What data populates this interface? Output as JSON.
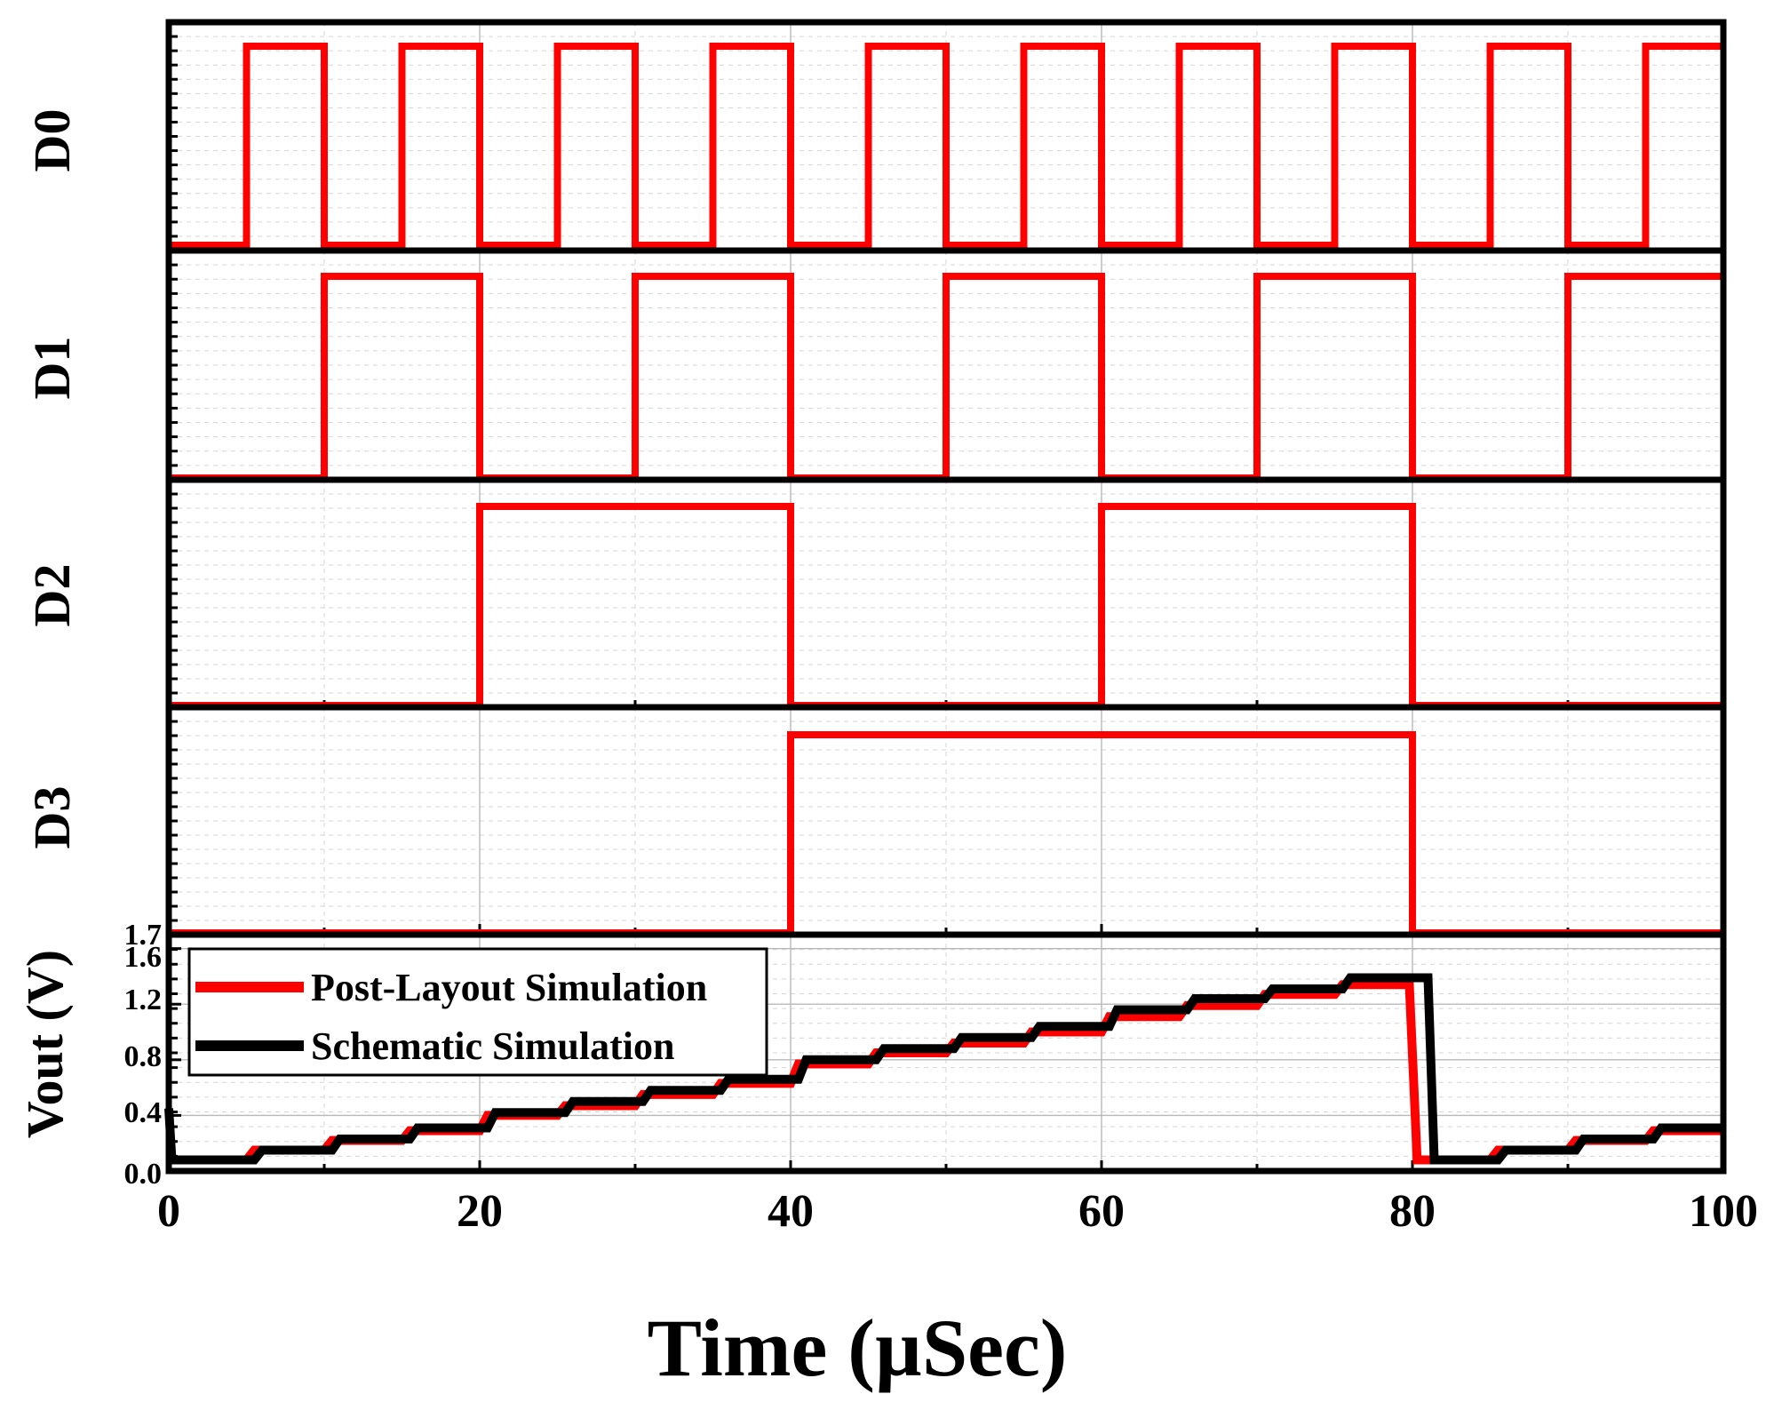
{
  "chart_data": {
    "type": "line",
    "xlabel": "Time (µSec)",
    "xlim": [
      0,
      100
    ],
    "xticks": [
      0,
      20,
      40,
      60,
      80,
      100
    ],
    "xtick_labels": [
      "0",
      "20",
      "40",
      "60",
      "80",
      "100"
    ],
    "colors": {
      "red": "#ff0000",
      "black": "#000000"
    },
    "panels": [
      {
        "id": "D0",
        "ylabel": "D0",
        "ylim": [
          0,
          1
        ],
        "series": [
          {
            "name": "D0",
            "color": "#ff0000",
            "x": [
              0,
              5,
              5,
              10,
              10,
              15,
              15,
              20,
              20,
              25,
              25,
              30,
              30,
              35,
              35,
              40,
              40,
              45,
              45,
              50,
              50,
              55,
              55,
              60,
              60,
              65,
              65,
              70,
              70,
              75,
              75,
              80,
              80,
              85,
              85,
              90,
              90,
              95,
              95,
              100
            ],
            "y": [
              0,
              0,
              1,
              1,
              0,
              0,
              1,
              1,
              0,
              0,
              1,
              1,
              0,
              0,
              1,
              1,
              0,
              0,
              1,
              1,
              0,
              0,
              1,
              1,
              0,
              0,
              1,
              1,
              0,
              0,
              1,
              1,
              0,
              0,
              1,
              1,
              0,
              0,
              1,
              1
            ]
          }
        ]
      },
      {
        "id": "D1",
        "ylabel": "D1",
        "ylim": [
          0,
          1
        ],
        "series": [
          {
            "name": "D1",
            "color": "#ff0000",
            "x": [
              0,
              10,
              10,
              20,
              20,
              30,
              30,
              40,
              40,
              50,
              50,
              60,
              60,
              70,
              70,
              80,
              80,
              90,
              90,
              100
            ],
            "y": [
              0,
              0,
              1,
              1,
              0,
              0,
              1,
              1,
              0,
              0,
              1,
              1,
              0,
              0,
              1,
              1,
              0,
              0,
              1,
              1
            ]
          }
        ]
      },
      {
        "id": "D2",
        "ylabel": "D2",
        "ylim": [
          0,
          1
        ],
        "series": [
          {
            "name": "D2",
            "color": "#ff0000",
            "x": [
              0,
              20,
              20,
              40,
              40,
              60,
              60,
              80,
              80,
              100
            ],
            "y": [
              0,
              0,
              1,
              1,
              0,
              0,
              1,
              1,
              0,
              0
            ]
          }
        ]
      },
      {
        "id": "D3",
        "ylabel": "D3",
        "ylim": [
          0,
          1
        ],
        "series": [
          {
            "name": "D3",
            "color": "#ff0000",
            "x": [
              0,
              40,
              40,
              80,
              80,
              100
            ],
            "y": [
              0,
              0,
              1,
              1,
              0,
              0
            ]
          }
        ]
      },
      {
        "id": "Vout",
        "ylabel": "Vout (V)",
        "ylim": [
          0,
          1.7
        ],
        "yticks": [
          0.0,
          0.4,
          0.8,
          1.2,
          1.6,
          1.7
        ],
        "ytick_labels": [
          "0.0",
          "0.4",
          "0.8",
          "1.2",
          "1.6",
          "1.7"
        ],
        "legend_position": "top-left",
        "series": [
          {
            "name": "Post-Layout Simulation",
            "color": "#ff0000",
            "x": [
              0,
              0.5,
              5,
              5.5,
              10,
              10.5,
              15,
              15.5,
              20,
              20.5,
              25,
              25.5,
              30,
              30.5,
              35,
              35.5,
              40,
              40.5,
              45,
              45.5,
              50,
              50.5,
              55,
              55.5,
              60,
              60.5,
              65,
              65.5,
              70,
              70.5,
              75,
              75.5,
              79.8,
              80.3,
              85,
              85.5,
              90,
              90.5,
              95,
              95.5,
              100
            ],
            "y": [
              0.08,
              0.08,
              0.08,
              0.15,
              0.15,
              0.22,
              0.22,
              0.29,
              0.29,
              0.4,
              0.4,
              0.47,
              0.47,
              0.55,
              0.55,
              0.63,
              0.63,
              0.77,
              0.77,
              0.85,
              0.85,
              0.92,
              0.92,
              1.0,
              1.0,
              1.11,
              1.11,
              1.19,
              1.19,
              1.27,
              1.27,
              1.34,
              1.34,
              0.08,
              0.08,
              0.15,
              0.15,
              0.22,
              0.22,
              0.29,
              0.29
            ]
          },
          {
            "name": "Schematic Simulation",
            "color": "#000000",
            "x": [
              0,
              0.2,
              0.4,
              5.5,
              6,
              10.5,
              11,
              15.5,
              16,
              20.5,
              21,
              25.5,
              26,
              30.5,
              31,
              35.5,
              36,
              40.5,
              41,
              45.5,
              46,
              50.5,
              51,
              55.5,
              56,
              60.5,
              61,
              65.5,
              66,
              70.5,
              71,
              75.5,
              76,
              81,
              81.4,
              85.5,
              86,
              90.5,
              91,
              95.5,
              96,
              100
            ],
            "y": [
              0.45,
              0.08,
              0.08,
              0.08,
              0.15,
              0.15,
              0.23,
              0.23,
              0.31,
              0.31,
              0.42,
              0.42,
              0.5,
              0.5,
              0.58,
              0.58,
              0.66,
              0.66,
              0.8,
              0.8,
              0.88,
              0.88,
              0.96,
              0.96,
              1.04,
              1.04,
              1.16,
              1.16,
              1.24,
              1.24,
              1.31,
              1.31,
              1.39,
              1.39,
              0.08,
              0.08,
              0.15,
              0.15,
              0.23,
              0.23,
              0.31,
              0.31
            ]
          }
        ]
      }
    ],
    "legend": [
      "Post-Layout Simulation",
      "Schematic Simulation"
    ]
  }
}
